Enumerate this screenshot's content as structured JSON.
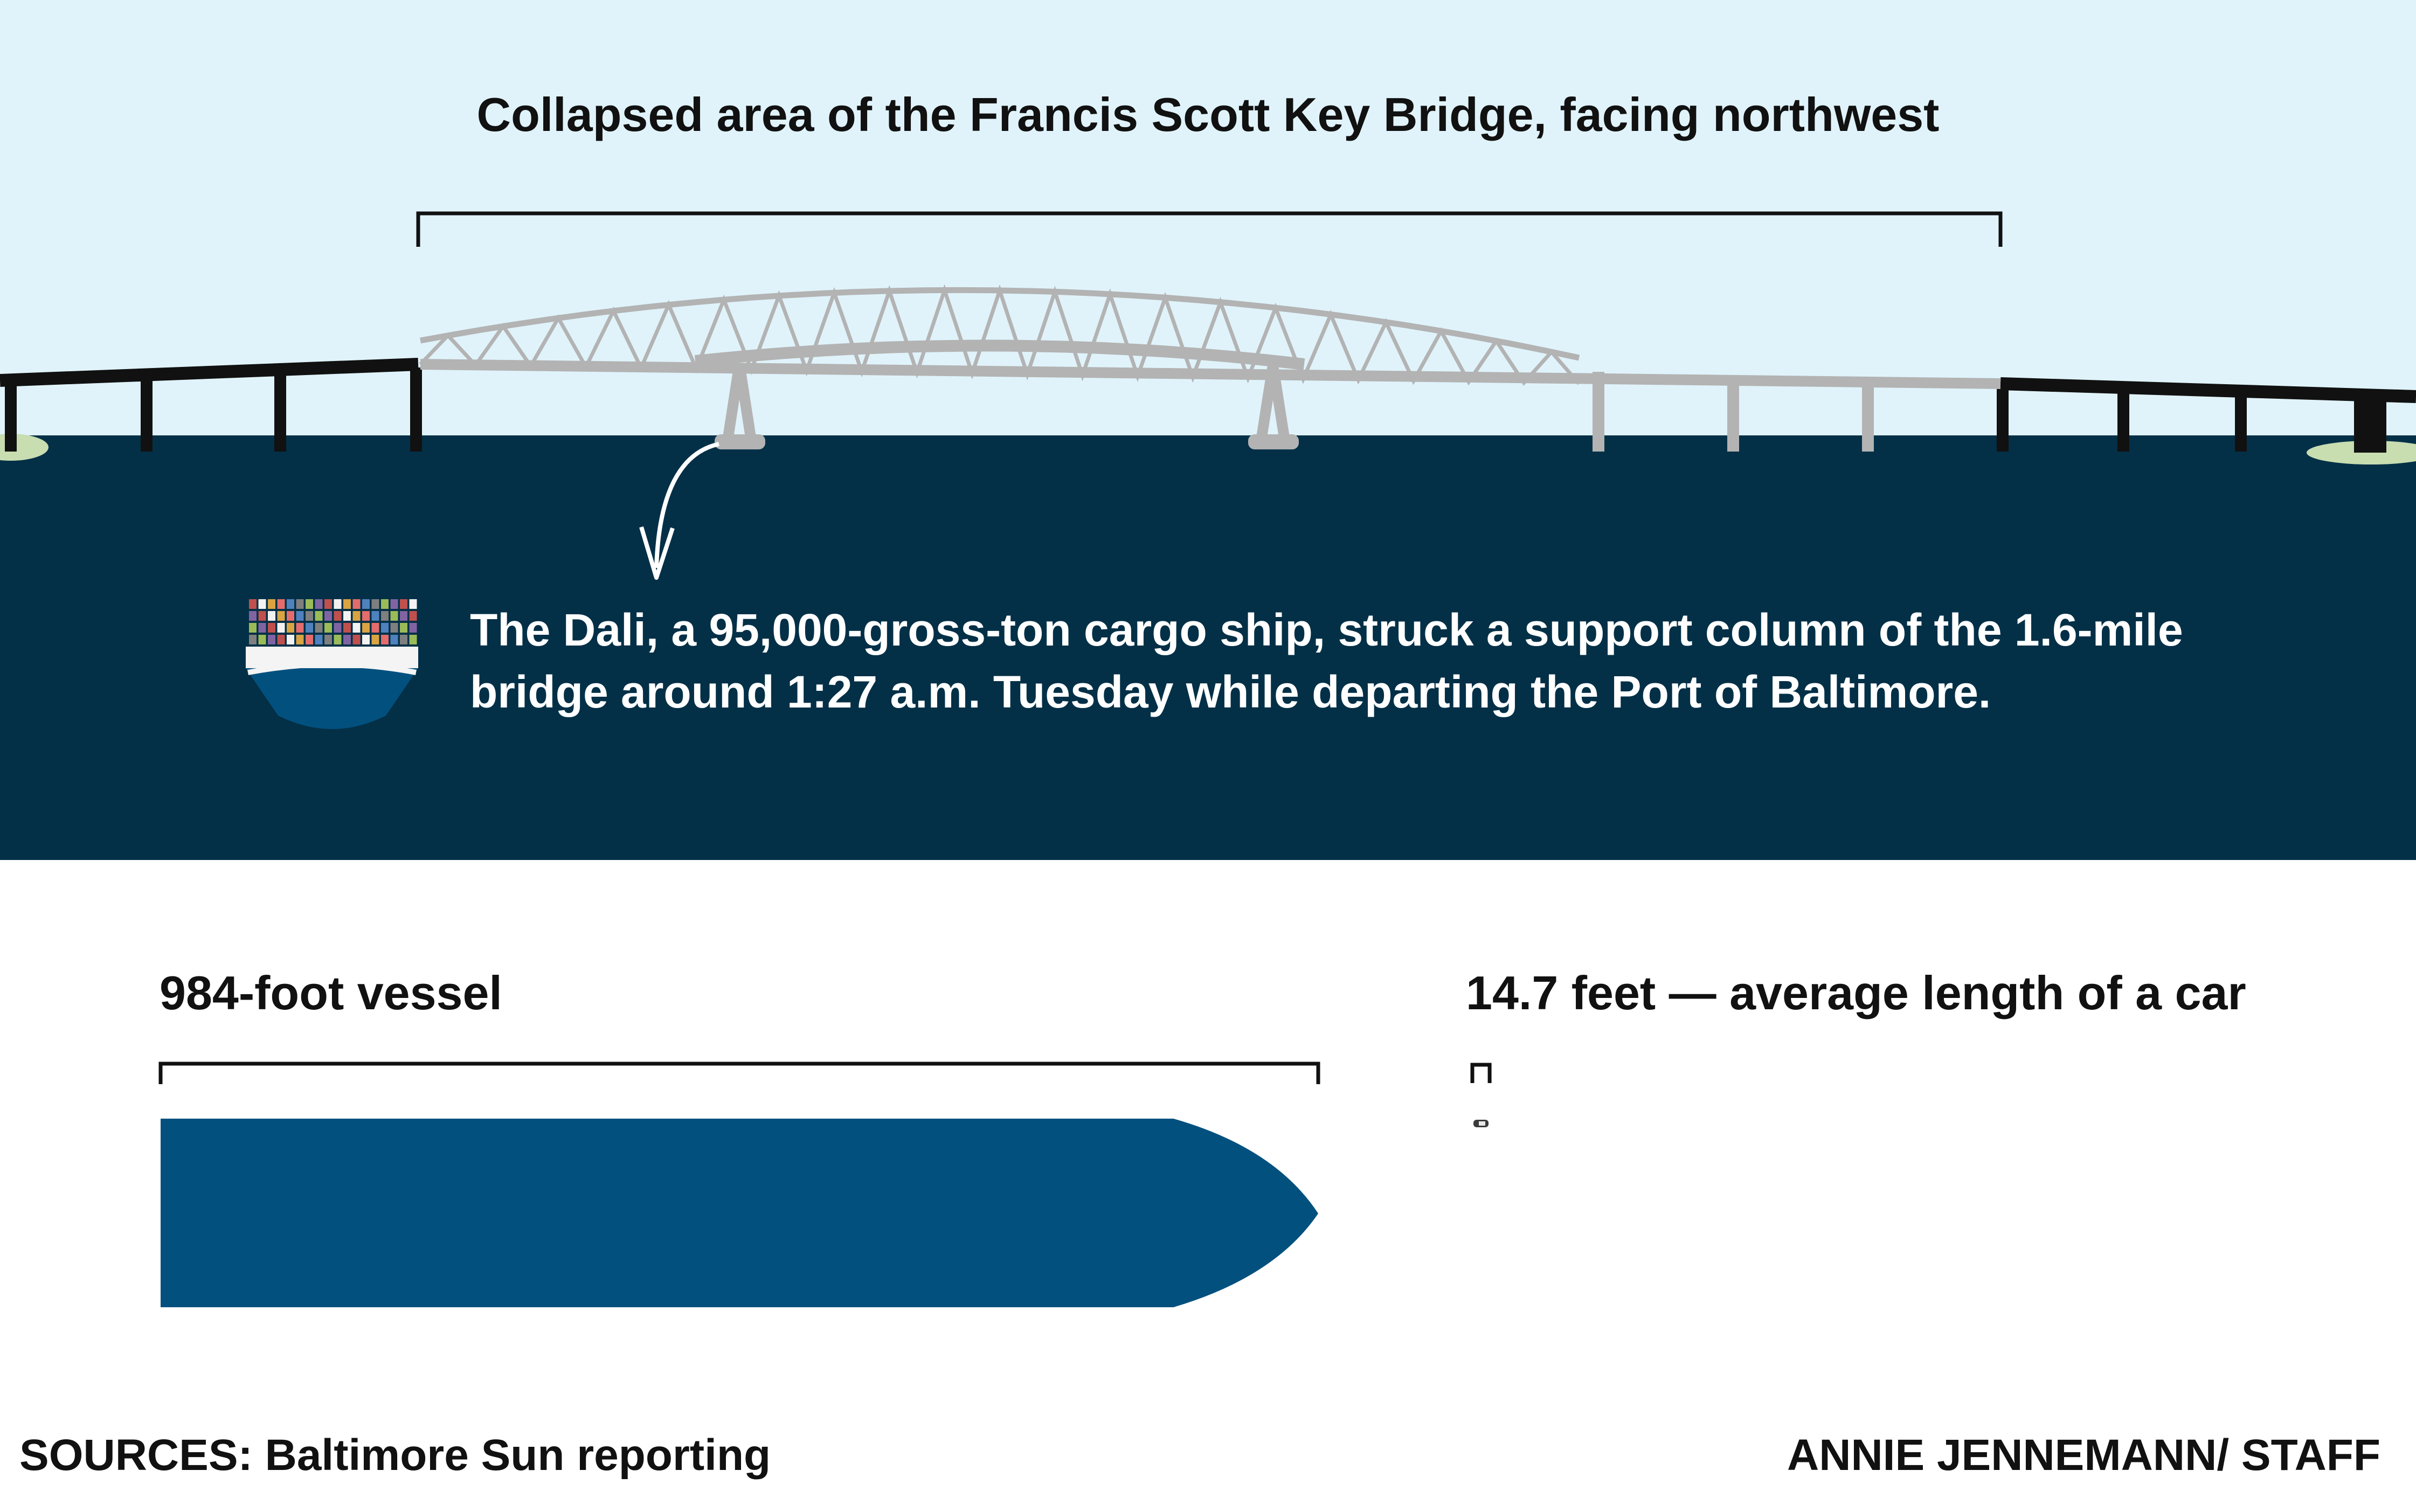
{
  "title": "Collapsed area of the Francis Scott Key Bridge, facing northwest",
  "dali_description": "The Dali, a 95,000-gross-ton cargo ship, struck a support column of the 1.6-mile bridge around 1:27 a.m. Tuesday while departing the Port of Baltimore.",
  "vessel_label": "984-foot vessel",
  "car_label": "14.7 feet — average length of a car",
  "vessel_length_ft": 984,
  "car_length_ft": 14.7,
  "sources": "SOURCES: Baltimore Sun reporting",
  "credit": "ANNIE JENNEMANN/ STAFF",
  "colors": {
    "sky": "#e0f3fb",
    "water": "#033047",
    "bridge_intact": "#111111",
    "bridge_collapsed": "#b3b3b3",
    "ship_hull": "#02507e",
    "shore": "#c8ddb0"
  },
  "icons": [
    "cargo-ship-icon",
    "car-icon",
    "arrow-icon"
  ]
}
